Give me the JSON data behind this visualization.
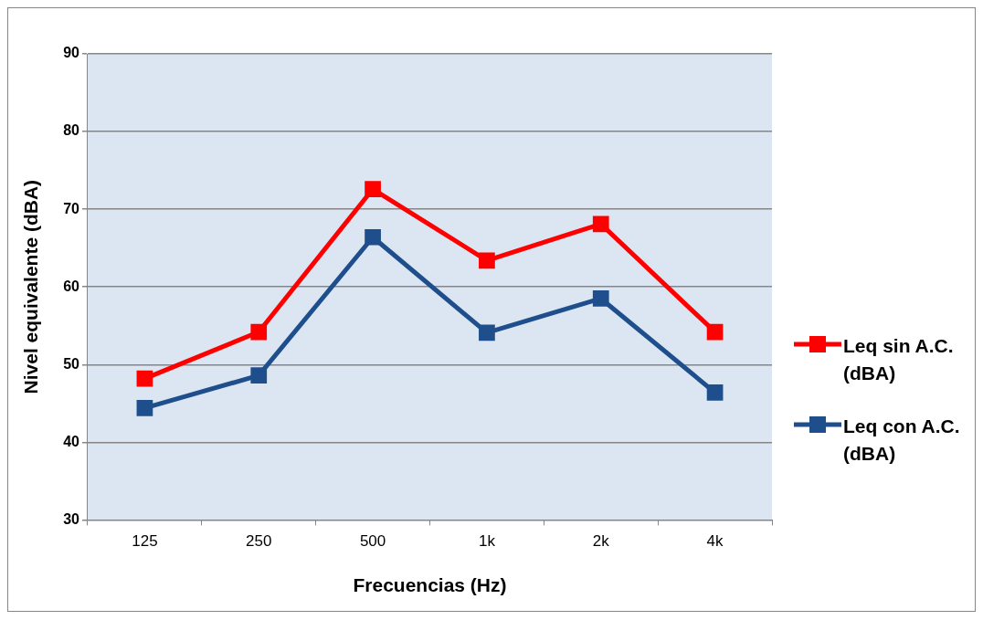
{
  "chart_data": {
    "type": "line",
    "xlabel": "Frecuencias (Hz)",
    "ylabel": "Nivel equivalente (dBA)",
    "categories": [
      "125",
      "250",
      "500",
      "1k",
      "2k",
      "4k"
    ],
    "series": [
      {
        "name": "Leq sin A.C. (dBA)",
        "color": "#ff0000",
        "values": [
          48.2,
          54.2,
          72.6,
          63.4,
          68.1,
          54.2
        ]
      },
      {
        "name": "Leq con A.C. (dBA)",
        "color": "#1f4e8c",
        "values": [
          44.4,
          48.6,
          66.4,
          54.1,
          58.5,
          46.4
        ]
      }
    ],
    "ylim": [
      30,
      90
    ],
    "yticks": [
      30,
      40,
      50,
      60,
      70,
      80,
      90
    ],
    "grid": "y",
    "legend": "right",
    "marker": "square",
    "line_style": "solid"
  }
}
